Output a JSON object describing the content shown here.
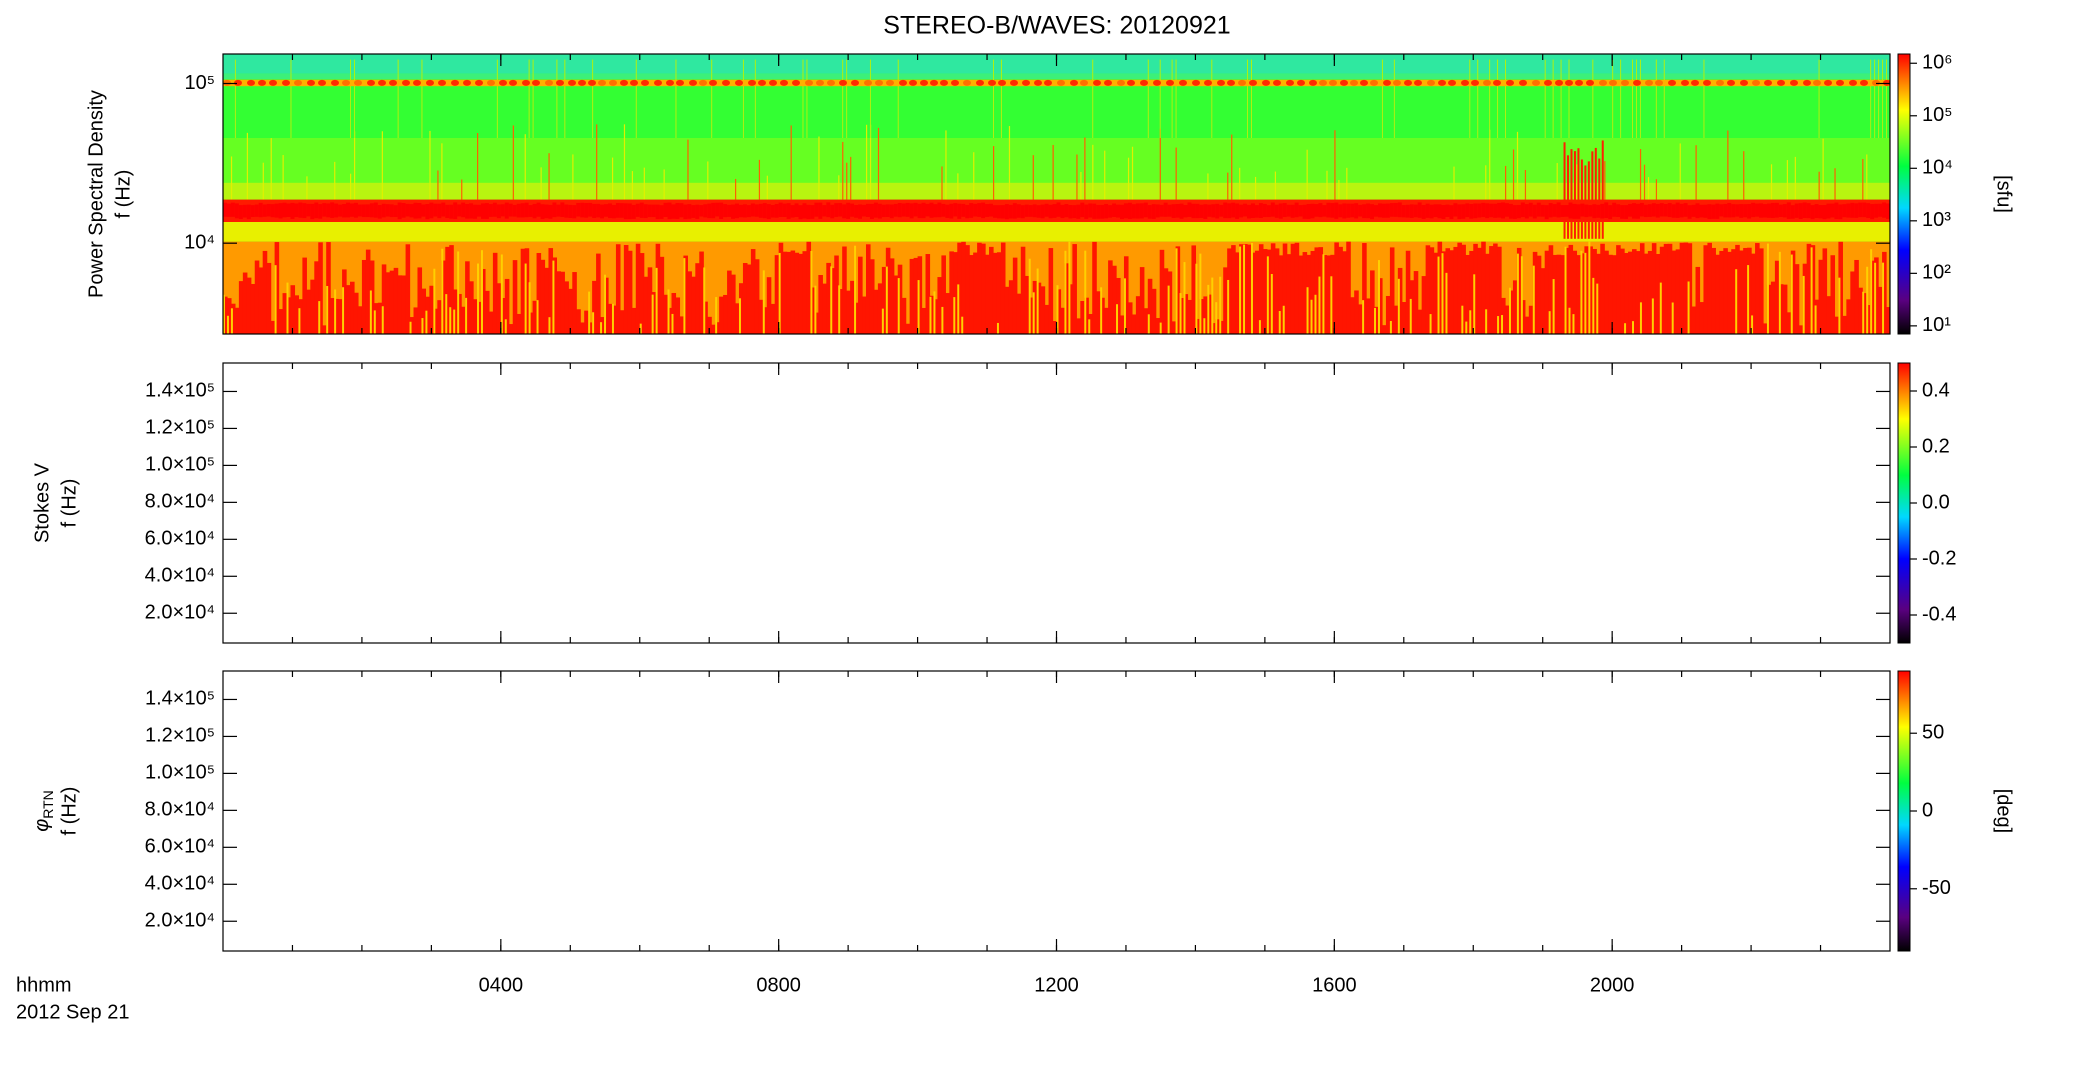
{
  "title": "STEREO-B/WAVES: 20120921",
  "time_label": "hhmm",
  "date_label": "2012 Sep 21",
  "chart_data": [
    {
      "type": "heatmap",
      "ylabel": [
        "Power Spectral Density",
        "f (Hz)"
      ],
      "ylog": true,
      "ylim": [
        2700,
        153000
      ],
      "yticks": [
        {
          "value": 10000,
          "label": "10⁴"
        },
        {
          "value": 100000,
          "label": "10⁵"
        }
      ],
      "colorbar": {
        "log": true,
        "lim": [
          7,
          1500000
        ],
        "ticks": [
          {
            "value": 10,
            "label": "10¹"
          },
          {
            "value": 100,
            "label": "10²"
          },
          {
            "value": 1000,
            "label": "10³"
          },
          {
            "value": 10000,
            "label": "10⁴"
          },
          {
            "value": 100000,
            "label": "10⁵"
          },
          {
            "value": 1000000,
            "label": "10⁶"
          }
        ],
        "label": "[sfu]"
      }
    },
    {
      "type": "heatmap",
      "ylabel": [
        "Stokes V",
        "f (Hz)"
      ],
      "ylog": false,
      "ylim": [
        3900,
        155400
      ],
      "yticks": [
        {
          "value": 20000,
          "label": "2.0×10⁴"
        },
        {
          "value": 40000,
          "label": "4.0×10⁴"
        },
        {
          "value": 60000,
          "label": "6.0×10⁴"
        },
        {
          "value": 80000,
          "label": "8.0×10⁴"
        },
        {
          "value": 100000,
          "label": "1.0×10⁵"
        },
        {
          "value": 120000,
          "label": "1.2×10⁵"
        },
        {
          "value": 140000,
          "label": "1.4×10⁵"
        }
      ],
      "colorbar": {
        "log": false,
        "lim": [
          -0.5,
          0.5
        ],
        "ticks": [
          -0.4,
          -0.2,
          {
            "value": 0,
            "label": "0.0"
          },
          0.2,
          0.4
        ]
      }
    },
    {
      "type": "heatmap",
      "ylabel_symbol": "φ",
      "ylabel_subscript": "RTN",
      "ylabel": [
        "f (Hz)"
      ],
      "ylog": false,
      "ylim": [
        3900,
        155400
      ],
      "yticks": [
        {
          "value": 20000,
          "label": "2.0×10⁴"
        },
        {
          "value": 40000,
          "label": "4.0×10⁴"
        },
        {
          "value": 60000,
          "label": "6.0×10⁴"
        },
        {
          "value": 80000,
          "label": "8.0×10⁴"
        },
        {
          "value": 100000,
          "label": "1.0×10⁵"
        },
        {
          "value": 120000,
          "label": "1.2×10⁵"
        },
        {
          "value": 140000,
          "label": "1.4×10⁵"
        }
      ],
      "xlim": [
        0,
        24
      ],
      "xticks": [
        {
          "value": 4,
          "label": "0400"
        },
        {
          "value": 8,
          "label": "0800"
        },
        {
          "value": 12,
          "label": "1200"
        },
        {
          "value": 16,
          "label": "1600"
        },
        {
          "value": 20,
          "label": "2000"
        }
      ],
      "colorbar": {
        "log": false,
        "lim": [
          -90,
          90
        ],
        "ticks": [
          -50,
          0,
          50
        ],
        "label": "[deg]"
      }
    }
  ]
}
